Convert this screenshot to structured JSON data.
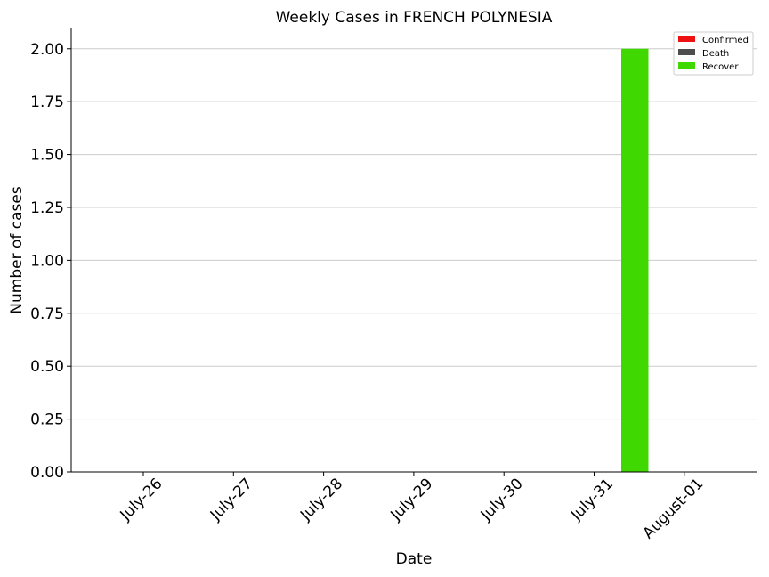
{
  "chart_data": {
    "type": "bar",
    "title": "Weekly Cases in FRENCH POLYNESIA",
    "xlabel": "Date",
    "ylabel": "Number of cases",
    "categories": [
      "July-26",
      "July-27",
      "July-28",
      "July-29",
      "July-30",
      "July-31",
      "August-01"
    ],
    "series": [
      {
        "name": "Confirmed",
        "color": "#ee1111",
        "values": [
          0,
          0,
          0,
          0,
          0,
          0,
          0
        ]
      },
      {
        "name": "Death",
        "color": "#4d4d4d",
        "values": [
          0,
          0,
          0,
          0,
          0,
          0,
          0
        ]
      },
      {
        "name": "Recover",
        "color": "#3fd800",
        "values": [
          0,
          0,
          0,
          0,
          0,
          2,
          0
        ]
      }
    ],
    "ylim": [
      0,
      2.1
    ],
    "yticks": [
      "0.00",
      "0.25",
      "0.50",
      "0.75",
      "1.00",
      "1.25",
      "1.50",
      "1.75",
      "2.00"
    ],
    "grid": "horizontal",
    "legend_position": "top-right"
  }
}
